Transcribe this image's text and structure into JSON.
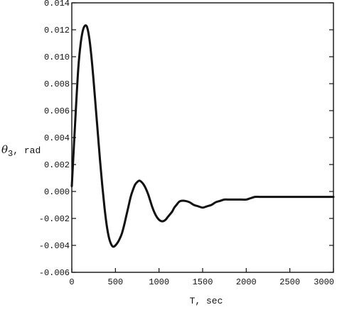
{
  "chart_data": {
    "type": "line",
    "title": "",
    "xlabel": "T, sec",
    "ylabel_symbol": "θ",
    "ylabel_subscript": "3",
    "ylabel_unit": ", rad",
    "xlim": [
      0,
      3000
    ],
    "ylim": [
      -0.006,
      0.014
    ],
    "xticks": [
      0,
      500,
      1000,
      1500,
      2000,
      2500,
      3000
    ],
    "xtick_labels": [
      "0",
      "500",
      "1000",
      "1500",
      "2000",
      "2500",
      "3000"
    ],
    "yticks": [
      0.014,
      0.012,
      0.01,
      0.008,
      0.006,
      0.004,
      0.002,
      0.0,
      -0.002,
      -0.004,
      -0.006
    ],
    "ytick_labels": [
      "0.014",
      "0.012",
      "0.010",
      "0.008",
      "0.006",
      "0.004",
      "0.002",
      "0.000",
      "-0.002",
      "-0.004",
      "-0.006"
    ],
    "grid": false,
    "line_color": "#111111",
    "series": [
      {
        "x": [
          0,
          25,
          50,
          75,
          100,
          125,
          150,
          175,
          200,
          225,
          250,
          275,
          300,
          325,
          350,
          375,
          400,
          425,
          450,
          475,
          500,
          525,
          550,
          575,
          600,
          625,
          650,
          675,
          700,
          725,
          750,
          775,
          800,
          825,
          850,
          875,
          900,
          925,
          950,
          975,
          1000,
          1025,
          1050,
          1075,
          1100,
          1125,
          1150,
          1175,
          1200,
          1225,
          1250,
          1300,
          1350,
          1400,
          1450,
          1500,
          1550,
          1600,
          1650,
          1700,
          1750,
          1800,
          1850,
          1900,
          1950,
          2000,
          2050,
          2100,
          2150,
          2200,
          2300,
          2400,
          2500,
          2600,
          2700,
          2800,
          2900,
          3000
        ],
        "y": [
          0.0004,
          0.0035,
          0.0065,
          0.0092,
          0.0109,
          0.0119,
          0.0123,
          0.0122,
          0.0114,
          0.01,
          0.0082,
          0.0062,
          0.0042,
          0.0022,
          0.0004,
          -0.0012,
          -0.0025,
          -0.0034,
          -0.0039,
          -0.0041,
          -0.004,
          -0.0038,
          -0.0035,
          -0.0031,
          -0.0025,
          -0.0018,
          -0.0011,
          -0.0004,
          0.0001,
          0.0005,
          0.0007,
          0.0008,
          0.0007,
          0.0005,
          0.0002,
          -0.0002,
          -0.0007,
          -0.0012,
          -0.0016,
          -0.0019,
          -0.0021,
          -0.0022,
          -0.0022,
          -0.0021,
          -0.0019,
          -0.0017,
          -0.0015,
          -0.0012,
          -0.001,
          -0.0008,
          -0.0007,
          -0.0007,
          -0.0008,
          -0.001,
          -0.0011,
          -0.0012,
          -0.0011,
          -0.001,
          -0.0008,
          -0.0007,
          -0.0006,
          -0.0006,
          -0.0006,
          -0.0006,
          -0.0006,
          -0.0006,
          -0.0005,
          -0.0004,
          -0.0004,
          -0.0004,
          -0.0004,
          -0.0004,
          -0.0004,
          -0.0004,
          -0.0004,
          -0.0004,
          -0.0004,
          -0.0004
        ]
      }
    ]
  }
}
